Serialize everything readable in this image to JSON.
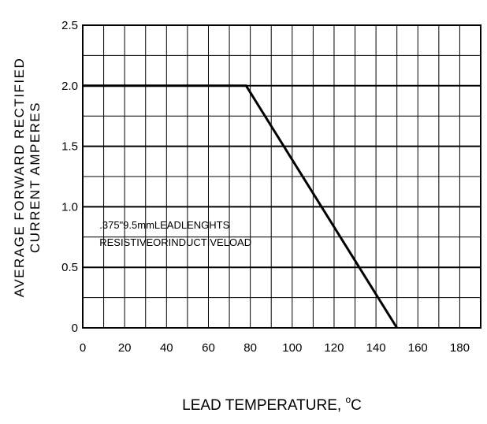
{
  "chart_data": {
    "type": "line",
    "title": "",
    "ylabel_line1": "AVERAGE FORWARD RECTIFIED",
    "ylabel_line2": "CURRENT AMPERES",
    "xlabel_prefix": "LEAD TEMPERATURE, ",
    "xlabel_degree": "o",
    "xlabel_unit": "C",
    "x_ticks": [
      "0",
      "20",
      "40",
      "60",
      "80",
      "100",
      "120",
      "140",
      "160",
      "180"
    ],
    "y_ticks": [
      "0",
      "0.5",
      "1.0",
      "1.5",
      "2.0",
      "2.5"
    ],
    "xlim": [
      0,
      190
    ],
    "ylim": [
      0,
      2.5
    ],
    "grid": true,
    "minor_x_step": 10,
    "major_y_step": 0.5,
    "minor_y_step": 0.25,
    "series": [
      {
        "x": [
          0,
          78,
          150
        ],
        "y": [
          2.0,
          2.0,
          0
        ]
      }
    ],
    "annotations": [
      ".375\"9.5mmLEADLENGHTS",
      "RESISTIVEORINDUCTIVELOAD"
    ],
    "line_color": "#000000",
    "grid_color": "#000000"
  }
}
